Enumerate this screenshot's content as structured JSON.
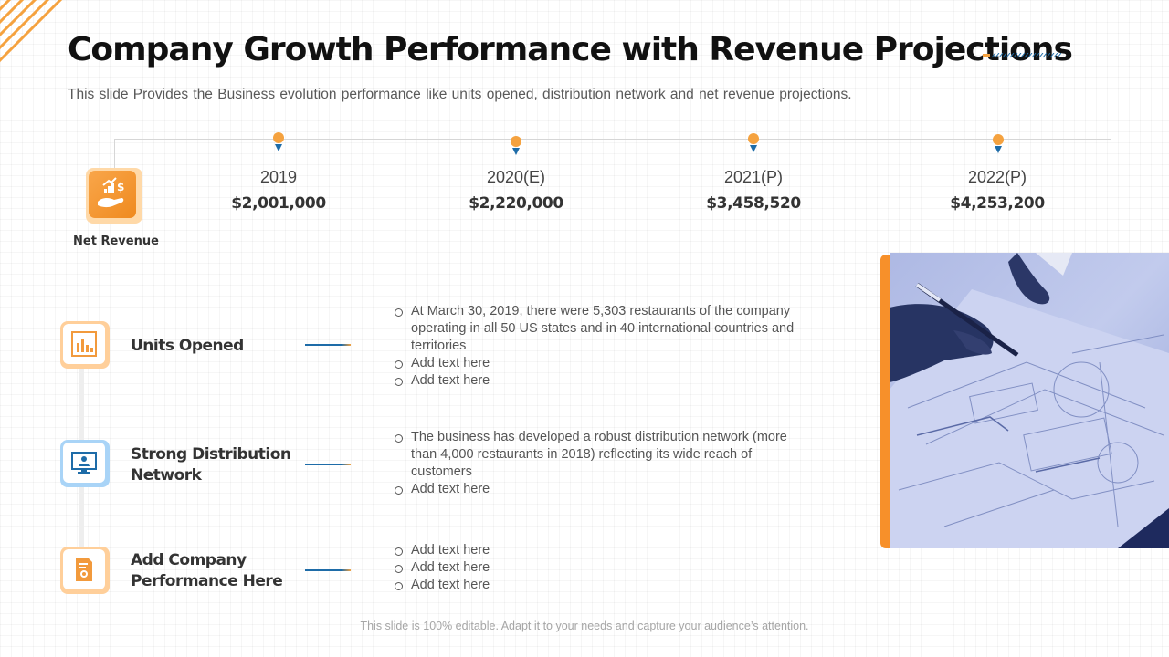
{
  "title": "Company Growth Performance with Revenue Projections",
  "subtitle": "This slide Provides the Business evolution performance like units opened, distribution network and net revenue projections.",
  "net_revenue": {
    "label": "Net Revenue",
    "years": [
      {
        "year": "2019",
        "value": "$2,001,000"
      },
      {
        "year": "2020(E)",
        "value": "$2,220,000"
      },
      {
        "year": "2021(P)",
        "value": "$3,458,520"
      },
      {
        "year": "2022(P)",
        "value": "$4,253,200"
      }
    ]
  },
  "rows": [
    {
      "title_lines": [
        "Units Opened"
      ],
      "icon": "bar-chart-icon",
      "bullets": [
        "At March 30, 2019, there were 5,303 restaurants of the company operating in all 50 US states and in 40 international countries and territories",
        "Add text here",
        "Add text here"
      ]
    },
    {
      "title_lines": [
        "Strong Distribution",
        "Network"
      ],
      "icon": "monitor-user-icon",
      "bullets": [
        "The business has developed a robust distribution network (more than 4,000 restaurants in 2018) reflecting its wide reach of customers",
        "Add text here"
      ]
    },
    {
      "title_lines": [
        "Add Company",
        "Performance Here"
      ],
      "icon": "certificate-icon",
      "bullets": [
        "Add text here",
        "Add text here",
        "Add text here"
      ]
    }
  ],
  "footer": "This slide is 100% editable. Adapt it to your needs and capture your audience’s attention.",
  "colors": {
    "accent_orange": "#f7902a",
    "accent_blue": "#1e6ca8",
    "photo_tint": "#8f9fd6"
  }
}
